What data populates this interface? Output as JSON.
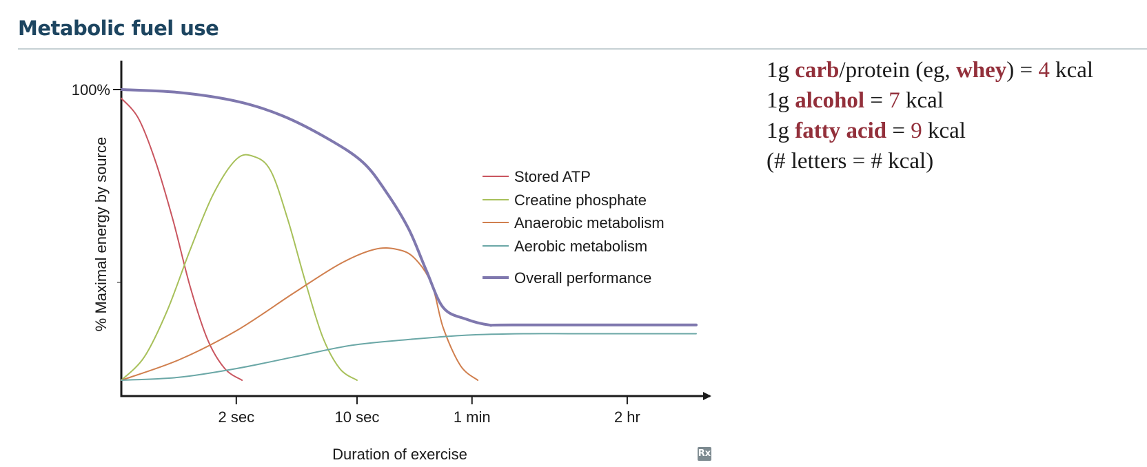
{
  "page": {
    "title": "Metabolic fuel use"
  },
  "notes": {
    "lines": [
      [
        {
          "t": "1g "
        },
        {
          "t": "carb",
          "hl": true
        },
        {
          "t": "/protein (eg, "
        },
        {
          "t": "whey",
          "hl": true
        },
        {
          "t": ") = "
        },
        {
          "t": "4",
          "num": true
        },
        {
          "t": " kcal"
        }
      ],
      [
        {
          "t": "1g "
        },
        {
          "t": "alcohol",
          "hl": true
        },
        {
          "t": " = "
        },
        {
          "t": "7",
          "num": true
        },
        {
          "t": " kcal"
        }
      ],
      [
        {
          "t": "1g "
        },
        {
          "t": "fatty acid",
          "hl": true
        },
        {
          "t": " = "
        },
        {
          "t": "9",
          "num": true
        },
        {
          "t": " kcal"
        }
      ],
      [
        {
          "t": "(# letters = # kcal)"
        }
      ]
    ]
  },
  "chart_data": {
    "type": "line",
    "title": "",
    "xlabel": "Duration of exercise",
    "ylabel": "% Maximal energy by source",
    "x_ticks": [
      "2 sec",
      "10 sec",
      "1 min",
      "2 hr"
    ],
    "x_tick_positions": [
      0.2,
      0.41,
      0.61,
      0.88
    ],
    "x_scale": "nonlinear (0 to 1, relative position along time axis)",
    "y_tick_labels": [
      "100%"
    ],
    "ylim": [
      0,
      100
    ],
    "xlim": [
      0,
      1
    ],
    "legend_position": "center-right",
    "grid": false,
    "series": [
      {
        "name": "Stored ATP",
        "color": "#c9555f",
        "x": [
          0,
          0.03,
          0.06,
          0.09,
          0.12,
          0.15,
          0.18,
          0.21
        ],
        "y": [
          97,
          90,
          75,
          55,
          32,
          14,
          4,
          0
        ]
      },
      {
        "name": "Creatine phosphate",
        "color": "#a7c05a",
        "x": [
          0,
          0.04,
          0.08,
          0.12,
          0.16,
          0.2,
          0.23,
          0.26,
          0.29,
          0.32,
          0.35,
          0.38,
          0.41
        ],
        "y": [
          0,
          8,
          24,
          45,
          64,
          76,
          77,
          72,
          55,
          34,
          15,
          4,
          0
        ]
      },
      {
        "name": "Anaerobic metabolism",
        "color": "#d07f4e",
        "x": [
          0,
          0.1,
          0.2,
          0.3,
          0.38,
          0.44,
          0.48,
          0.51,
          0.54,
          0.56,
          0.59,
          0.62
        ],
        "y": [
          0,
          7,
          17,
          30,
          40,
          45,
          45,
          42,
          33,
          18,
          5,
          0
        ]
      },
      {
        "name": "Aerobic metabolism",
        "color": "#6aa7a6",
        "x": [
          0,
          0.1,
          0.2,
          0.3,
          0.4,
          0.5,
          0.6,
          0.7,
          0.8,
          1.0
        ],
        "y": [
          0,
          1,
          4,
          8,
          12,
          14,
          15.5,
          16,
          16,
          16
        ]
      },
      {
        "name": "Overall performance",
        "color": "#7f78ae",
        "x": [
          0,
          0.1,
          0.2,
          0.28,
          0.36,
          0.42,
          0.46,
          0.5,
          0.53,
          0.56,
          0.6,
          0.64,
          0.68,
          1.0
        ],
        "y": [
          100,
          99,
          96,
          91,
          83,
          75,
          65,
          52,
          38,
          25,
          21,
          19,
          19,
          19
        ]
      }
    ]
  },
  "logo": {
    "text": "Rx"
  }
}
